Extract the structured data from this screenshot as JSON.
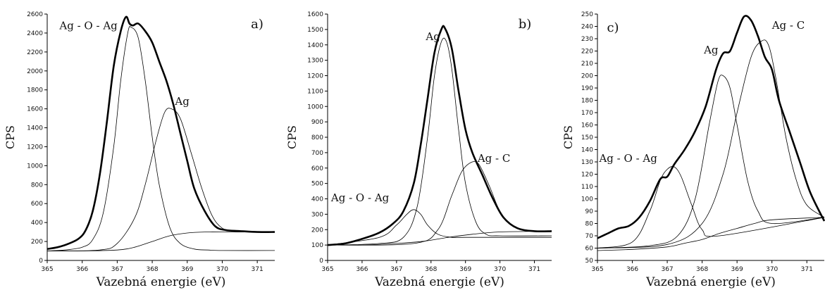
{
  "chart_data": [
    {
      "type": "line",
      "panel_label": "a)",
      "xlabel": "Vazebná energie (eV)",
      "ylabel": "CPS",
      "xlim": [
        365,
        371.5
      ],
      "ylim": [
        0,
        2600
      ],
      "x_ticks": [
        365,
        366,
        367,
        368,
        369,
        370,
        371
      ],
      "y_ticks": [
        0,
        200,
        400,
        600,
        800,
        1000,
        1200,
        1400,
        1600,
        1800,
        2000,
        2200,
        2400,
        2600
      ],
      "series": [
        {
          "role": "measured",
          "x": [
            365.0,
            365.3,
            365.6,
            365.9,
            366.1,
            366.3,
            366.5,
            366.7,
            366.9,
            367.1,
            367.25,
            367.35,
            367.45,
            367.6,
            367.8,
            368.0,
            368.2,
            368.4,
            368.6,
            368.8,
            369.0,
            369.2,
            369.5,
            369.8,
            370.1,
            370.5,
            371.0,
            371.5
          ],
          "y": [
            120,
            140,
            175,
            230,
            320,
            520,
            900,
            1450,
            2050,
            2420,
            2570,
            2500,
            2480,
            2500,
            2420,
            2300,
            2100,
            1900,
            1650,
            1350,
            1050,
            760,
            520,
            360,
            320,
            310,
            300,
            300
          ]
        },
        {
          "role": "component",
          "x": [
            365.0,
            365.5,
            366.0,
            366.3,
            366.6,
            366.9,
            367.1,
            367.3,
            367.4,
            367.6,
            367.8,
            368.0,
            368.2,
            368.5,
            368.8,
            369.2,
            369.6,
            370.0,
            371.5
          ],
          "y": [
            100,
            110,
            140,
            220,
            500,
            1200,
            1900,
            2400,
            2460,
            2350,
            1900,
            1300,
            800,
            350,
            180,
            120,
            110,
            105,
            105
          ]
        },
        {
          "role": "component",
          "x": [
            365.0,
            366.5,
            367.0,
            367.5,
            367.8,
            368.1,
            368.35,
            368.55,
            368.8,
            369.1,
            369.4,
            369.7,
            370.0,
            370.4,
            371.0,
            371.5
          ],
          "y": [
            100,
            110,
            180,
            450,
            800,
            1250,
            1560,
            1600,
            1500,
            1150,
            780,
            480,
            340,
            305,
            300,
            300
          ]
        },
        {
          "role": "background",
          "x": [
            365.0,
            366.0,
            367.0,
            367.5,
            368.0,
            368.5,
            369.0,
            369.5,
            370.0,
            371.5
          ],
          "y": [
            100,
            100,
            110,
            140,
            200,
            260,
            290,
            300,
            300,
            300
          ]
        }
      ],
      "annotations": [
        {
          "text": "Ag - O - Ag",
          "x": 365.35,
          "y": 2440
        },
        {
          "text": "Ag",
          "x": 368.65,
          "y": 1640
        }
      ]
    },
    {
      "type": "line",
      "panel_label": "b)",
      "xlabel": "Vazebná energie (eV)",
      "ylabel": "CPS",
      "xlim": [
        365,
        371.5
      ],
      "ylim": [
        0,
        1600
      ],
      "x_ticks": [
        365,
        366,
        367,
        368,
        369,
        370,
        371
      ],
      "y_ticks": [
        0,
        100,
        200,
        300,
        400,
        500,
        600,
        700,
        800,
        900,
        1000,
        1100,
        1200,
        1300,
        1400,
        1500,
        1600
      ],
      "series": [
        {
          "role": "measured",
          "x": [
            365.0,
            365.5,
            366.0,
            366.5,
            366.9,
            367.2,
            367.5,
            367.7,
            367.9,
            368.1,
            368.3,
            368.4,
            368.6,
            368.8,
            369.0,
            369.2,
            369.5,
            369.8,
            370.1,
            370.5,
            371.0,
            371.5
          ],
          "y": [
            100,
            110,
            140,
            180,
            240,
            320,
            500,
            750,
            1050,
            1350,
            1500,
            1510,
            1380,
            1100,
            850,
            700,
            550,
            400,
            280,
            210,
            190,
            190
          ]
        },
        {
          "role": "component",
          "x": [
            365.0,
            366.5,
            367.2,
            367.6,
            367.9,
            368.1,
            368.3,
            368.45,
            368.6,
            368.8,
            369.0,
            369.3,
            369.6,
            370.0,
            371.5
          ],
          "y": [
            100,
            110,
            150,
            350,
            800,
            1200,
            1420,
            1420,
            1250,
            850,
            500,
            250,
            170,
            160,
            160
          ]
        },
        {
          "role": "component",
          "x": [
            365.0,
            366.5,
            367.0,
            367.3,
            367.5,
            367.7,
            367.9,
            368.2,
            368.6,
            369.0,
            371.5
          ],
          "y": [
            100,
            150,
            230,
            300,
            330,
            300,
            230,
            170,
            150,
            150,
            150
          ]
        },
        {
          "role": "component",
          "x": [
            365.0,
            367.5,
            368.2,
            368.6,
            368.9,
            369.2,
            369.4,
            369.7,
            370.0,
            370.4,
            371.0,
            371.5
          ],
          "y": [
            100,
            110,
            200,
            420,
            580,
            640,
            620,
            480,
            320,
            220,
            190,
            190
          ]
        },
        {
          "role": "background",
          "x": [
            365.0,
            366.0,
            367.0,
            367.8,
            368.5,
            369.2,
            370.0,
            371.5
          ],
          "y": [
            100,
            100,
            110,
            125,
            150,
            170,
            185,
            190
          ]
        }
      ],
      "annotations": [
        {
          "text": "Ag",
          "x": 367.85,
          "y": 1430
        },
        {
          "text": "Ag - C",
          "x": 369.35,
          "y": 640
        },
        {
          "text": "Ag - O - Ag",
          "x": 365.1,
          "y": 385
        }
      ]
    },
    {
      "type": "line",
      "panel_label": "c)",
      "xlabel": "Vazebná energie (eV)",
      "ylabel": "CPS",
      "xlim": [
        365,
        371.5
      ],
      "ylim": [
        50,
        250
      ],
      "x_ticks": [
        365,
        366,
        367,
        368,
        369,
        370,
        371
      ],
      "y_ticks": [
        50,
        60,
        70,
        80,
        90,
        100,
        110,
        120,
        130,
        140,
        150,
        160,
        170,
        180,
        190,
        200,
        210,
        220,
        230,
        240,
        250
      ],
      "series": [
        {
          "role": "measured",
          "x": [
            365.0,
            365.3,
            365.6,
            365.9,
            366.2,
            366.5,
            366.8,
            367.0,
            367.2,
            367.5,
            367.8,
            368.1,
            368.4,
            368.6,
            368.8,
            369.0,
            369.2,
            369.4,
            369.6,
            369.8,
            370.0,
            370.2,
            370.5,
            370.8,
            371.1,
            371.5
          ],
          "y": [
            68,
            72,
            76,
            78,
            85,
            98,
            116,
            118,
            128,
            140,
            155,
            175,
            205,
            218,
            220,
            235,
            248,
            245,
            232,
            215,
            205,
            180,
            155,
            130,
            105,
            82
          ]
        },
        {
          "role": "component",
          "x": [
            365.0,
            366.0,
            366.5,
            366.8,
            367.0,
            367.2,
            367.4,
            367.7,
            368.0,
            368.5,
            371.5
          ],
          "y": [
            60,
            65,
            90,
            115,
            124,
            126,
            118,
            95,
            75,
            70,
            85
          ]
        },
        {
          "role": "component",
          "x": [
            365.0,
            366.5,
            367.3,
            367.8,
            368.2,
            368.45,
            368.6,
            368.8,
            369.0,
            369.3,
            369.6,
            370.0,
            371.5
          ],
          "y": [
            60,
            62,
            70,
            100,
            160,
            195,
            200,
            190,
            160,
            115,
            90,
            80,
            85
          ]
        },
        {
          "role": "component",
          "x": [
            365.0,
            367.0,
            368.0,
            368.6,
            369.0,
            369.4,
            369.7,
            369.9,
            370.1,
            370.4,
            370.7,
            371.0,
            371.5
          ],
          "y": [
            60,
            63,
            80,
            120,
            170,
            215,
            228,
            225,
            200,
            150,
            115,
            95,
            85
          ]
        },
        {
          "role": "background",
          "x": [
            365.0,
            366.0,
            367.0,
            367.5,
            368.0,
            368.5,
            369.0,
            369.5,
            370.0,
            371.5
          ],
          "y": [
            58,
            59,
            61,
            64,
            67,
            72,
            76,
            80,
            83,
            85
          ]
        }
      ],
      "annotations": [
        {
          "text": "Ag",
          "x": 368.05,
          "y": 218
        },
        {
          "text": "Ag - C",
          "x": 370.0,
          "y": 238
        },
        {
          "text": "Ag - O - Ag",
          "x": 365.05,
          "y": 130
        }
      ]
    }
  ]
}
